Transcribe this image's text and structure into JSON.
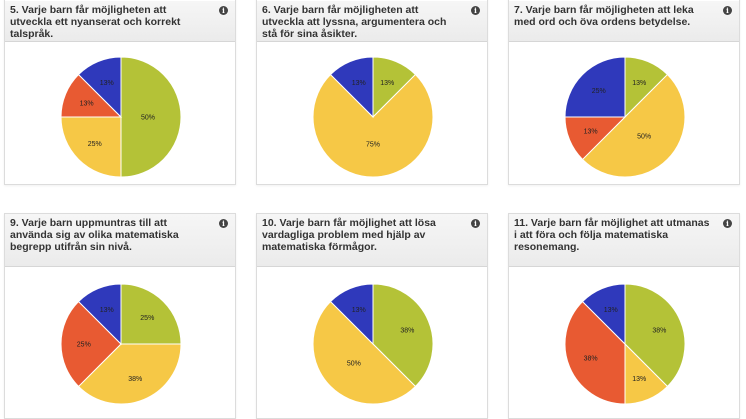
{
  "colors": {
    "green": "#b4c237",
    "yellow": "#f6c846",
    "red": "#e85a32",
    "blue": "#2f39bb"
  },
  "chart_data": [
    {
      "type": "pie",
      "title": "5. Varje barn får möjligheten att utveckla ett nyanserat och korrekt talspråk.",
      "slices": [
        {
          "value": 50,
          "label": "50%",
          "color": "#b4c237"
        },
        {
          "value": 25,
          "label": "25%",
          "color": "#f6c846"
        },
        {
          "value": 12.5,
          "label": "13%",
          "color": "#e85a32"
        },
        {
          "value": 12.5,
          "label": "13%",
          "color": "#2f39bb"
        }
      ]
    },
    {
      "type": "pie",
      "title": "6. Varje barn får möjligheten att utveckla att lyssna, argumentera och stå för sina åsikter.",
      "slices": [
        {
          "value": 12.5,
          "label": "13%",
          "color": "#b4c237"
        },
        {
          "value": 75,
          "label": "75%",
          "color": "#f6c846"
        },
        {
          "value": 12.5,
          "label": "13%",
          "color": "#2f39bb"
        }
      ]
    },
    {
      "type": "pie",
      "title": "7. Varje barn får möjligheten att leka med ord och öva ordens betydelse.",
      "slices": [
        {
          "value": 12.5,
          "label": "13%",
          "color": "#b4c237"
        },
        {
          "value": 50,
          "label": "50%",
          "color": "#f6c846"
        },
        {
          "value": 12.5,
          "label": "13%",
          "color": "#e85a32"
        },
        {
          "value": 25,
          "label": "25%",
          "color": "#2f39bb"
        }
      ]
    },
    {
      "type": "pie",
      "title": "9. Varje barn uppmuntras till att använda sig av olika matematiska begrepp utifrån sin nivå.",
      "slices": [
        {
          "value": 25,
          "label": "25%",
          "color": "#b4c237"
        },
        {
          "value": 37.5,
          "label": "38%",
          "color": "#f6c846"
        },
        {
          "value": 25,
          "label": "25%",
          "color": "#e85a32"
        },
        {
          "value": 12.5,
          "label": "13%",
          "color": "#2f39bb"
        }
      ]
    },
    {
      "type": "pie",
      "title": "10. Varje barn får möjlighet att lösa vardagliga problem med hjälp av matematiska förmågor.",
      "slices": [
        {
          "value": 37.5,
          "label": "38%",
          "color": "#b4c237"
        },
        {
          "value": 50,
          "label": "50%",
          "color": "#f6c846"
        },
        {
          "value": 12.5,
          "label": "13%",
          "color": "#2f39bb"
        }
      ]
    },
    {
      "type": "pie",
      "title": "11. Varje barn får möjlighet att utmanas i att föra och följa matematiska resonemang.",
      "slices": [
        {
          "value": 37.5,
          "label": "38%",
          "color": "#b4c237"
        },
        {
          "value": 12.5,
          "label": "13%",
          "color": "#f6c846"
        },
        {
          "value": 37.5,
          "label": "38%",
          "color": "#e85a32"
        },
        {
          "value": 12.5,
          "label": "13%",
          "color": "#2f39bb"
        }
      ]
    }
  ]
}
